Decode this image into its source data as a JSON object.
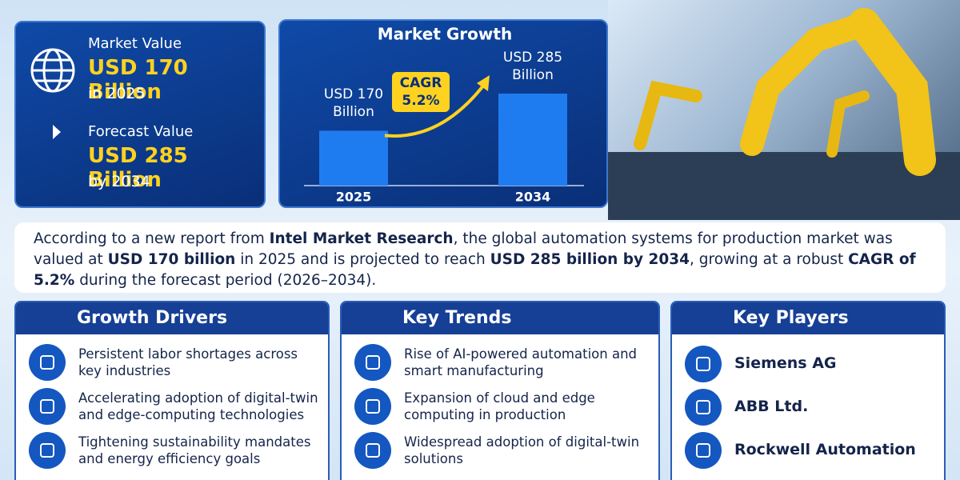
{
  "summary": {
    "current": {
      "label": "Market Value",
      "value": "USD 170 Billion",
      "period": "in 2025"
    },
    "forecast": {
      "label": "Forecast Value",
      "value": "USD 285 Billion",
      "period": "by 2034"
    }
  },
  "market_growth": {
    "type": "bar",
    "title": "Market Growth",
    "categories": [
      "2025",
      "2034"
    ],
    "values": [
      170,
      285
    ],
    "value_labels": [
      "USD 170 Billion",
      "USD 285 Billion"
    ],
    "badge": "CAGR 5.2%",
    "color": "#1f7cf0"
  },
  "intro": {
    "segments": [
      {
        "text": "According to a new report from ",
        "bold": false
      },
      {
        "text": "Intel Market Research",
        "bold": true
      },
      {
        "text": ", the global automation systems for production market was valued at ",
        "bold": false
      },
      {
        "text": "USD 170 billion",
        "bold": true
      },
      {
        "text": " in 2025 and is projected to reach ",
        "bold": false
      },
      {
        "text": "USD 285 billion by 2034",
        "bold": true
      },
      {
        "text": ", growing at a robust ",
        "bold": false
      },
      {
        "text": "CAGR of 5.2%",
        "bold": true
      },
      {
        "text": " during the forecast period (2026–2034).",
        "bold": false
      }
    ]
  },
  "sections": [
    {
      "title": "Growth Drivers",
      "items": [
        "Persistent labor shortages across key industries",
        "Accelerating adoption of digital-twin and edge-computing technologies",
        "Tightening sustainability mandates and energy efficiency goals"
      ]
    },
    {
      "title": "Key Trends",
      "items": [
        "Rise of AI-powered automation and smart manufacturing",
        "Expansion of cloud and edge computing in production",
        "Widespread adoption of digital-twin solutions"
      ]
    },
    {
      "title": "Key Players",
      "items": [
        "Siemens AG",
        "ABB Ltd.",
        "Rockwell Automation"
      ]
    }
  ]
}
